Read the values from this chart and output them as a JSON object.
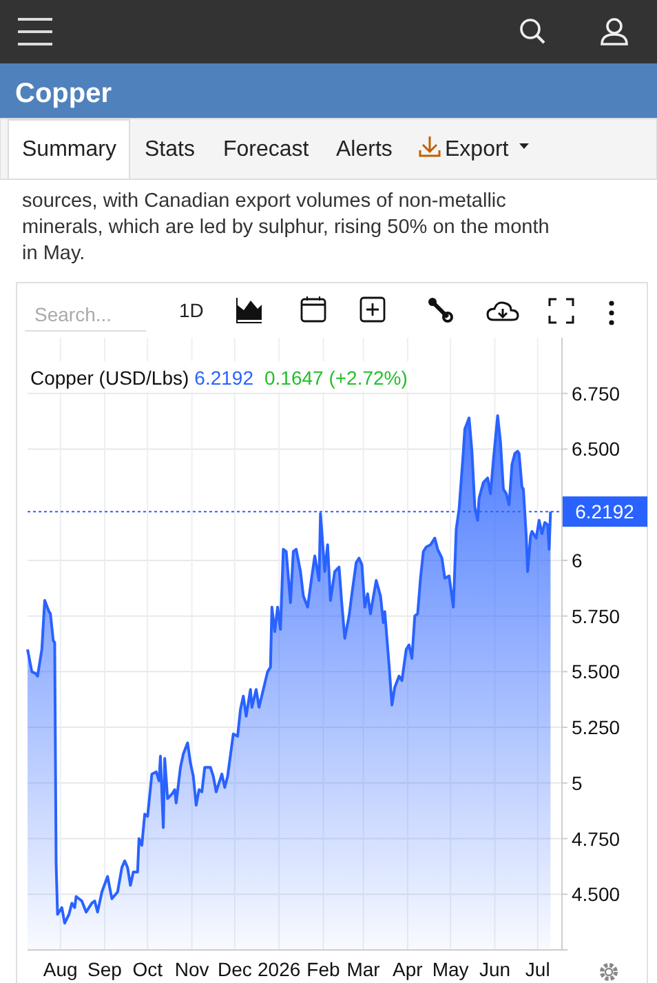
{
  "chart_data": {
    "type": "area",
    "title": "Copper",
    "subtitle": "sources, with Canadian export volumes of non-metallic minerals, which are led by sulphur, rising 50% on the month in May.",
    "annotations": [
      "Summary",
      "Stats",
      "Forecast",
      "Alerts",
      "Export",
      "Search...",
      "1D",
      "Copper (USD/Lbs)",
      "6.2192",
      "0.1647 (+2.72%)"
    ],
    "x": [
      "2025-07-09",
      "2025-07-12",
      "2025-07-15",
      "2025-07-16",
      "2025-07-18",
      "2025-07-19",
      "2025-07-21",
      "2025-07-24",
      "2025-07-25",
      "2025-07-27",
      "2025-07-28",
      "2025-07-29",
      "2025-07-30",
      "2025-08-02",
      "2025-08-04",
      "2025-08-07",
      "2025-08-09",
      "2025-08-11",
      "2025-08-12",
      "2025-08-16",
      "2025-08-19",
      "2025-08-23",
      "2025-08-25",
      "2025-08-27",
      "2025-08-30",
      "2025-09-03",
      "2025-09-06",
      "2025-09-10",
      "2025-09-13",
      "2025-09-15",
      "2025-09-17",
      "2025-09-19",
      "2025-09-21",
      "2025-09-24",
      "2025-09-25",
      "2025-09-27",
      "2025-09-29",
      "2025-10-01",
      "2025-10-04",
      "2025-10-07",
      "2025-10-09",
      "2025-10-10",
      "2025-10-12",
      "2025-10-13",
      "2025-10-15",
      "2025-10-18",
      "2025-10-20",
      "2025-10-21",
      "2025-10-24",
      "2025-10-26",
      "2025-10-29",
      "2025-10-31",
      "2025-11-02",
      "2025-11-04",
      "2025-11-06",
      "2025-11-08",
      "2025-11-10",
      "2025-11-14",
      "2025-11-16",
      "2025-11-18",
      "2025-11-22",
      "2025-11-24",
      "2025-11-26",
      "2025-11-30",
      "2025-12-03",
      "2025-12-05",
      "2025-12-07",
      "2025-12-09",
      "2025-12-12",
      "2025-12-13",
      "2025-12-16",
      "2025-12-18",
      "2025-12-21",
      "2025-12-24",
      "2025-12-26",
      "2025-12-27",
      "2025-12-29",
      "2025-12-31",
      "2026-01-02",
      "2026-01-04",
      "2026-01-06",
      "2026-01-09",
      "2026-01-11",
      "2026-01-13",
      "2026-01-16",
      "2026-01-18",
      "2026-01-21",
      "2026-01-24",
      "2026-01-26",
      "2026-01-29",
      "2026-01-30",
      "2026-02-02",
      "2026-02-04",
      "2026-02-06",
      "2026-02-09",
      "2026-02-12",
      "2026-02-14",
      "2026-02-16",
      "2026-02-19",
      "2026-02-21",
      "2026-02-24",
      "2026-02-26",
      "2026-02-28",
      "2026-03-02",
      "2026-03-04",
      "2026-03-06",
      "2026-03-10",
      "2026-03-13",
      "2026-03-15",
      "2026-03-16",
      "2026-03-19",
      "2026-03-21",
      "2026-03-23",
      "2026-03-26",
      "2026-03-28",
      "2026-03-31",
      "2026-04-02",
      "2026-04-04",
      "2026-04-06",
      "2026-04-08",
      "2026-04-10",
      "2026-04-12",
      "2026-04-14",
      "2026-04-17",
      "2026-04-20",
      "2026-04-22",
      "2026-04-25",
      "2026-04-27",
      "2026-04-30",
      "2026-05-03",
      "2026-05-05",
      "2026-05-07",
      "2026-05-10",
      "2026-05-11",
      "2026-05-14",
      "2026-05-16",
      "2026-05-18",
      "2026-05-20",
      "2026-05-21",
      "2026-05-24",
      "2026-05-27",
      "2026-05-29",
      "2026-05-31",
      "2026-06-03",
      "2026-06-05",
      "2026-06-07",
      "2026-06-09",
      "2026-06-11",
      "2026-06-13",
      "2026-06-15",
      "2026-06-17",
      "2026-06-18",
      "2026-06-20",
      "2026-06-21",
      "2026-06-23",
      "2026-06-24",
      "2026-06-26",
      "2026-06-27",
      "2026-06-30",
      "2026-07-02",
      "2026-07-04",
      "2026-07-06",
      "2026-07-08",
      "2026-07-09",
      "2026-07-10"
    ],
    "series": [
      {
        "color": "#2962ff",
        "values": [
          5.6,
          5.5,
          5.49,
          5.48,
          5.56,
          5.6,
          5.82,
          5.77,
          5.76,
          5.64,
          5.63,
          4.64,
          4.41,
          4.44,
          4.37,
          4.41,
          4.46,
          4.44,
          4.49,
          4.47,
          4.42,
          4.46,
          4.47,
          4.42,
          4.51,
          4.58,
          4.48,
          4.51,
          4.62,
          4.65,
          4.62,
          4.54,
          4.6,
          4.6,
          4.75,
          4.72,
          4.86,
          4.85,
          5.04,
          5.05,
          5.01,
          5.12,
          4.8,
          5.11,
          4.93,
          4.95,
          4.97,
          4.91,
          5.07,
          5.13,
          5.18,
          5.09,
          5.03,
          4.9,
          4.97,
          4.96,
          5.07,
          5.07,
          5.03,
          4.96,
          5.04,
          4.98,
          5.03,
          5.22,
          5.21,
          5.33,
          5.39,
          5.3,
          5.42,
          5.34,
          5.42,
          5.34,
          5.42,
          5.5,
          5.52,
          5.79,
          5.68,
          5.79,
          5.69,
          6.05,
          6.04,
          5.81,
          6.04,
          6.05,
          5.95,
          5.84,
          5.79,
          5.93,
          6.02,
          5.91,
          6.21,
          5.95,
          6.07,
          5.82,
          5.95,
          5.97,
          5.8,
          5.65,
          5.75,
          5.85,
          5.99,
          6.01,
          5.98,
          5.79,
          5.85,
          5.76,
          5.91,
          5.84,
          5.72,
          5.77,
          5.53,
          5.35,
          5.43,
          5.48,
          5.46,
          5.6,
          5.62,
          5.56,
          5.75,
          5.76,
          5.92,
          6.04,
          6.06,
          6.07,
          6.1,
          6.05,
          6.01,
          5.92,
          5.93,
          5.79,
          6.14,
          6.23,
          6.49,
          6.59,
          6.64,
          6.49,
          6.24,
          6.18,
          6.28,
          6.35,
          6.37,
          6.3,
          6.45,
          6.65,
          6.53,
          6.32,
          6.3,
          6.25,
          6.43,
          6.48,
          6.49,
          6.48,
          6.33,
          6.32,
          6.11,
          5.95,
          6.11,
          6.13,
          6.1,
          6.18,
          6.12,
          6.17,
          6.16,
          6.05,
          6.2192
        ]
      }
    ],
    "xlim": [
      "2025-07-09",
      "2026-07-18"
    ],
    "xticks": [
      {
        "value": "2025-08-01",
        "label": "Aug"
      },
      {
        "value": "2025-09-01",
        "label": "Sep"
      },
      {
        "value": "2025-10-01",
        "label": "Oct"
      },
      {
        "value": "2025-11-01",
        "label": "Nov"
      },
      {
        "value": "2025-12-01",
        "label": "Dec"
      },
      {
        "value": "2026-01-01",
        "label": "2026"
      },
      {
        "value": "2026-02-01",
        "label": "Feb"
      },
      {
        "value": "2026-03-01",
        "label": "Mar"
      },
      {
        "value": "2026-04-01",
        "label": "Apr"
      },
      {
        "value": "2026-05-01",
        "label": "May"
      },
      {
        "value": "2026-06-01",
        "label": "Jun"
      },
      {
        "value": "2026-07-01",
        "label": "Jul"
      }
    ],
    "ylim": [
      4.25,
      7.0
    ],
    "yticks": [
      {
        "value": 4.5,
        "label": "4.500"
      },
      {
        "value": 4.75,
        "label": "4.750"
      },
      5,
      {
        "value": 5.25,
        "label": "5.250"
      },
      {
        "value": 5.5,
        "label": "5.500"
      },
      {
        "value": 5.75,
        "label": "5.750"
      },
      6,
      {
        "value": 6.5,
        "label": "6.500"
      },
      {
        "value": 6.75,
        "label": "6.750"
      }
    ],
    "grid": true,
    "ref_lines": [
      {
        "axis": "y",
        "value": 6.2192,
        "label": "6.2192",
        "color": "#2962ff",
        "line_style": "dotted"
      }
    ]
  }
}
